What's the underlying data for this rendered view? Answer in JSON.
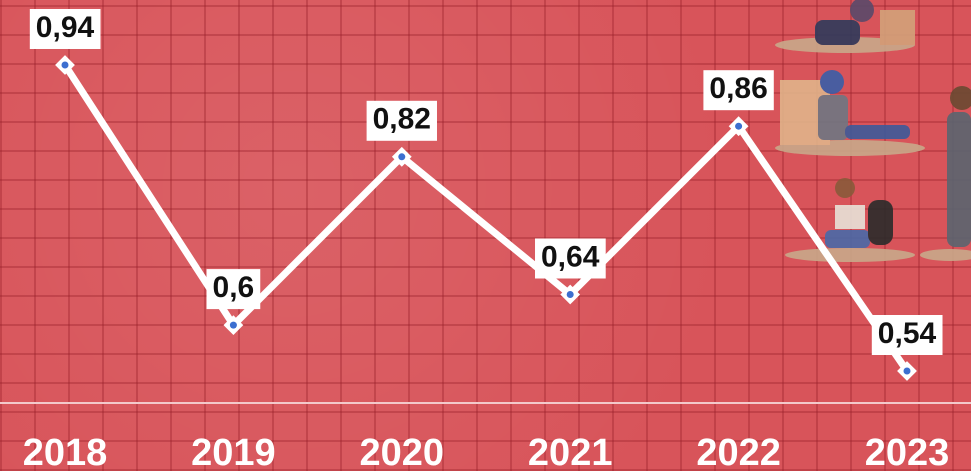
{
  "chart_data": {
    "type": "line",
    "categories": [
      "2018",
      "2019",
      "2020",
      "2021",
      "2022",
      "2023"
    ],
    "values": [
      0.94,
      0.6,
      0.82,
      0.64,
      0.86,
      0.54
    ],
    "value_labels": [
      "0,94",
      "0,6",
      "0,82",
      "0,64",
      "0,86",
      "0,54"
    ],
    "color": "#ffffff"
  }
}
